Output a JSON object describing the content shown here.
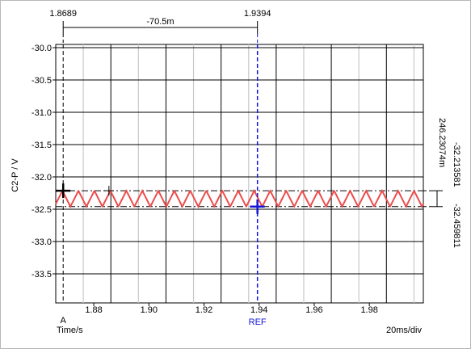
{
  "chart_data": {
    "type": "line",
    "ylabel": "C2-P / V",
    "xlabel": "Time/s",
    "xlim": [
      1.8662,
      1.9996
    ],
    "ylim": [
      -33.95,
      -29.95
    ],
    "x_ticks": [
      {
        "value": 1.88,
        "label": "1.88"
      },
      {
        "value": 1.9,
        "label": "1.90"
      },
      {
        "value": 1.92,
        "label": "1.92"
      },
      {
        "value": 1.94,
        "label": "1.94"
      },
      {
        "value": 1.96,
        "label": "1.96"
      },
      {
        "value": 1.98,
        "label": "1.98"
      }
    ],
    "y_ticks": [
      {
        "value": -30.0,
        "label": "-30.0"
      },
      {
        "value": -30.5,
        "label": "-30.5"
      },
      {
        "value": -31.0,
        "label": "-31.0"
      },
      {
        "value": -31.5,
        "label": "-31.5"
      },
      {
        "value": -32.0,
        "label": "-32.0"
      },
      {
        "value": -32.5,
        "label": "-32.5"
      },
      {
        "value": -33.0,
        "label": "-33.0"
      },
      {
        "value": -33.5,
        "label": "-33.5"
      }
    ],
    "major_grid_x": [
      1.8662,
      1.8862,
      1.9062,
      1.9262,
      1.9462,
      1.9662,
      1.9862
    ],
    "minor_grid_x": [
      1.8762,
      1.8962,
      1.9162,
      1.9362,
      1.9562,
      1.9762,
      1.9962
    ],
    "time_per_div": "20ms/div",
    "series": [
      {
        "color": "#ee4b4b",
        "waveform": "triangle",
        "high": -32.2136,
        "low": -32.4598,
        "period": 0.0058,
        "x_start": 1.8662,
        "x_end": 1.9996,
        "start_level": -32.42,
        "start_phase": "rising"
      }
    ],
    "cursors": {
      "a_label": "A",
      "ref_label": "REF",
      "a_x": 1.8689,
      "ref_x": 1.9394,
      "a_x_text": "1.8689",
      "ref_x_text": "1.9394",
      "delta_x_text": "-70.5m",
      "y_high": -32.2136,
      "y_low": -32.4598,
      "y_high_text": "-32.213581",
      "y_low_text": "-32.459811",
      "delta_y_text": "246.23074m",
      "a_color": "#000000",
      "ref_color": "#1515d8",
      "small_marker_x": 1.8855
    }
  }
}
